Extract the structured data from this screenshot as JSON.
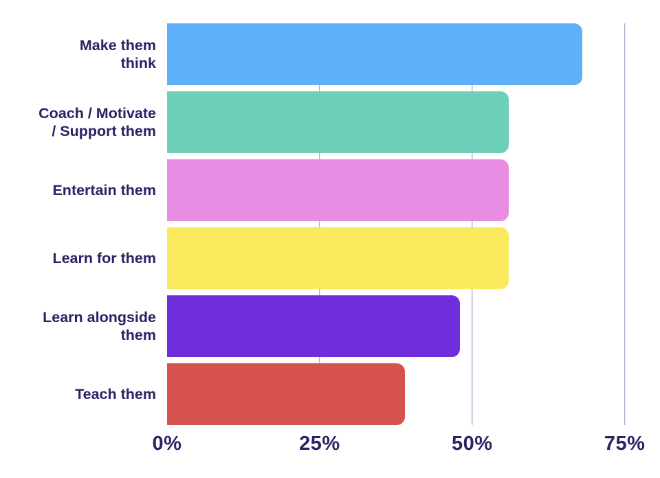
{
  "chart_data": {
    "type": "bar",
    "orientation": "horizontal",
    "title": "",
    "xlabel": "",
    "ylabel": "",
    "categories": [
      "Make them think",
      "Coach / Motivate / Support them",
      "Entertain them",
      "Learn for them",
      "Learn alongside them",
      "Teach them"
    ],
    "label_lines": [
      [
        "Make them",
        "think"
      ],
      [
        "Coach / Motivate",
        "/ Support them"
      ],
      [
        "Entertain them"
      ],
      [
        "Learn for them"
      ],
      [
        "Learn alongside",
        "them"
      ],
      [
        "Teach them"
      ]
    ],
    "values": [
      68,
      56,
      56,
      56,
      48,
      39
    ],
    "unit": "%",
    "xlim": [
      0,
      80
    ],
    "x_ticks": [
      {
        "value": 0,
        "label": "0%"
      },
      {
        "value": 25,
        "label": "25%"
      },
      {
        "value": 50,
        "label": "50%"
      },
      {
        "value": 75,
        "label": "75%"
      }
    ],
    "bar_colors": [
      "#5EB0F8",
      "#6ED0B9",
      "#E98CE4",
      "#FAE95C",
      "#6F2EDC",
      "#D5524E"
    ],
    "grid": true,
    "gridlines_at": [
      25,
      50,
      75
    ],
    "gridline_color": "#908DC2",
    "label_color": "#2B2164",
    "background": "#FFFFFF",
    "legend": "none"
  }
}
